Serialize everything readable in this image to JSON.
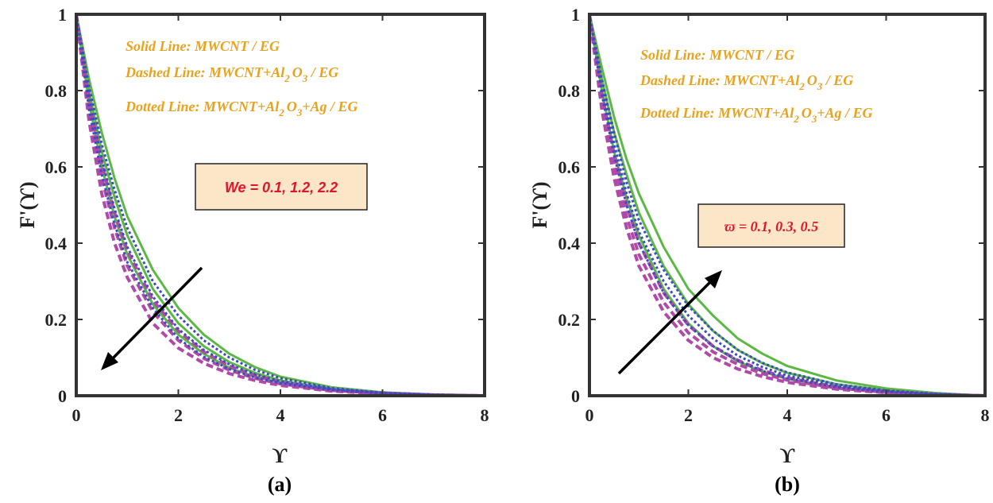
{
  "colors": {
    "solid": "#5cb845",
    "dashed": "#b04aa8",
    "dotted": "#3b4cc0",
    "legend": "#e8a21c",
    "param_text": "#e0142b",
    "param_box": "#fbe6c8",
    "axis": "#333333",
    "arrow": "#000000"
  },
  "legend": {
    "solid": "Solid Line: MWCNT / EG",
    "dashed_a": "Dashed Line: MWCNT+Al",
    "dashed_b": "O",
    "dashed_c": " / EG",
    "dotted_a": "Dotted Line: MWCNT+Al",
    "dotted_b": "O",
    "dotted_c": "+Ag / EG",
    "sub2": "2",
    "sub3": "3"
  },
  "panel_a": {
    "param": "We = 0.1, 1.2, 2.2",
    "label": "(a)",
    "ylabel": "F'(ϒ)",
    "xlabel": "ϒ"
  },
  "panel_b": {
    "param": "ϖ = 0.1, 0.3, 0.5",
    "label": "(b)",
    "ylabel": "F'(ϒ)",
    "xlabel": "ϒ"
  },
  "chart_data": [
    {
      "type": "line",
      "panel": "(a)",
      "xlabel": "ϒ",
      "ylabel": "F'(ϒ)",
      "xlim": [
        0,
        8
      ],
      "ylim": [
        0,
        1
      ],
      "xticks": [
        0,
        2,
        4,
        6,
        8
      ],
      "yticks": [
        0,
        0.2,
        0.4,
        0.6,
        0.8,
        1
      ],
      "ytick_labels": [
        "0",
        "0.2",
        "0.4",
        "0.6",
        "0.8",
        "1"
      ],
      "parameter": "We = 0.1, 1.2, 2.2",
      "trend": "decreasing",
      "x": [
        0,
        0.25,
        0.5,
        0.75,
        1,
        1.5,
        2,
        2.5,
        3,
        3.5,
        4,
        5,
        6,
        7,
        8
      ],
      "series": [
        {
          "name": "MWCNT / EG, We = 0.1",
          "style": "solid",
          "values": [
            1,
            0.83,
            0.69,
            0.57,
            0.47,
            0.33,
            0.23,
            0.16,
            0.11,
            0.075,
            0.05,
            0.022,
            0.009,
            0.003,
            0
          ]
        },
        {
          "name": "MWCNT / EG, We = 1.2",
          "style": "solid",
          "values": [
            1,
            0.8,
            0.64,
            0.52,
            0.42,
            0.28,
            0.19,
            0.13,
            0.088,
            0.06,
            0.04,
            0.017,
            0.007,
            0.002,
            0
          ]
        },
        {
          "name": "MWCNT / EG, We = 2.2",
          "style": "solid",
          "values": [
            1,
            0.77,
            0.6,
            0.47,
            0.37,
            0.24,
            0.16,
            0.11,
            0.073,
            0.05,
            0.034,
            0.015,
            0.006,
            0.002,
            0
          ]
        },
        {
          "name": "MWCNT+Al2O3 / EG, We = 0.1",
          "style": "dashed",
          "values": [
            1,
            0.78,
            0.61,
            0.48,
            0.38,
            0.25,
            0.17,
            0.115,
            0.078,
            0.053,
            0.036,
            0.016,
            0.007,
            0.002,
            0
          ]
        },
        {
          "name": "MWCNT+Al2O3 / EG, We = 1.2",
          "style": "dashed",
          "values": [
            1,
            0.75,
            0.57,
            0.44,
            0.34,
            0.22,
            0.145,
            0.098,
            0.067,
            0.046,
            0.031,
            0.014,
            0.006,
            0.002,
            0
          ]
        },
        {
          "name": "MWCNT+Al2O3 / EG, We = 2.2",
          "style": "dashed",
          "values": [
            1,
            0.72,
            0.53,
            0.4,
            0.31,
            0.19,
            0.125,
            0.085,
            0.058,
            0.04,
            0.027,
            0.012,
            0.005,
            0.002,
            0
          ]
        },
        {
          "name": "MWCNT+Al2O3+Ag / EG, We = 0.1",
          "style": "dotted",
          "values": [
            1,
            0.81,
            0.66,
            0.54,
            0.44,
            0.3,
            0.21,
            0.145,
            0.1,
            0.068,
            0.046,
            0.02,
            0.008,
            0.003,
            0
          ]
        },
        {
          "name": "MWCNT+Al2O3+Ag / EG, We = 1.2",
          "style": "dotted",
          "values": [
            1,
            0.78,
            0.62,
            0.49,
            0.39,
            0.26,
            0.175,
            0.12,
            0.082,
            0.056,
            0.038,
            0.017,
            0.007,
            0.002,
            0
          ]
        },
        {
          "name": "MWCNT+Al2O3+Ag / EG, We = 2.2",
          "style": "dotted",
          "values": [
            1,
            0.75,
            0.58,
            0.45,
            0.35,
            0.23,
            0.15,
            0.102,
            0.07,
            0.048,
            0.033,
            0.015,
            0.006,
            0.002,
            0
          ]
        }
      ]
    },
    {
      "type": "line",
      "panel": "(b)",
      "xlabel": "ϒ",
      "ylabel": "F'(ϒ)",
      "xlim": [
        0,
        8
      ],
      "ylim": [
        0,
        1
      ],
      "xticks": [
        0,
        2,
        4,
        6,
        8
      ],
      "yticks": [
        0,
        0.2,
        0.4,
        0.6,
        0.8,
        1
      ],
      "ytick_labels": [
        "0",
        "0.2",
        "0.4",
        "0.6",
        "0.8",
        "1"
      ],
      "parameter": "ϖ = 0.1, 0.3, 0.5",
      "trend": "increasing",
      "x": [
        0,
        0.25,
        0.5,
        0.75,
        1,
        1.5,
        2,
        2.5,
        3,
        3.5,
        4,
        5,
        6,
        7,
        8
      ],
      "series": [
        {
          "name": "MWCNT / EG, ϖ = 0.1",
          "style": "solid",
          "values": [
            1,
            0.8,
            0.64,
            0.52,
            0.42,
            0.28,
            0.19,
            0.13,
            0.09,
            0.063,
            0.044,
            0.021,
            0.009,
            0.003,
            0
          ]
        },
        {
          "name": "MWCNT / EG, ϖ = 0.3",
          "style": "solid",
          "values": [
            1,
            0.83,
            0.69,
            0.58,
            0.48,
            0.34,
            0.24,
            0.17,
            0.12,
            0.085,
            0.06,
            0.03,
            0.014,
            0.005,
            0
          ]
        },
        {
          "name": "MWCNT / EG, ϖ = 0.5",
          "style": "solid",
          "values": [
            1,
            0.86,
            0.73,
            0.62,
            0.53,
            0.39,
            0.28,
            0.21,
            0.15,
            0.11,
            0.078,
            0.04,
            0.019,
            0.007,
            0
          ]
        },
        {
          "name": "MWCNT+Al2O3 / EG, ϖ = 0.1",
          "style": "dashed",
          "values": [
            1,
            0.75,
            0.57,
            0.44,
            0.34,
            0.22,
            0.145,
            0.1,
            0.07,
            0.05,
            0.035,
            0.017,
            0.008,
            0.003,
            0
          ]
        },
        {
          "name": "MWCNT+Al2O3 / EG, ϖ = 0.3",
          "style": "dashed",
          "values": [
            1,
            0.77,
            0.6,
            0.47,
            0.37,
            0.245,
            0.165,
            0.115,
            0.082,
            0.058,
            0.041,
            0.02,
            0.009,
            0.003,
            0
          ]
        },
        {
          "name": "MWCNT+Al2O3 / EG, ϖ = 0.5",
          "style": "dashed",
          "values": [
            1,
            0.79,
            0.63,
            0.5,
            0.4,
            0.27,
            0.185,
            0.13,
            0.093,
            0.066,
            0.047,
            0.023,
            0.011,
            0.004,
            0
          ]
        },
        {
          "name": "MWCNT+Al2O3+Ag / EG, ϖ = 0.1",
          "style": "dotted",
          "values": [
            1,
            0.79,
            0.63,
            0.5,
            0.4,
            0.27,
            0.185,
            0.13,
            0.092,
            0.065,
            0.046,
            0.022,
            0.01,
            0.004,
            0
          ]
        },
        {
          "name": "MWCNT+Al2O3+Ag / EG, ϖ = 0.3",
          "style": "dotted",
          "values": [
            1,
            0.81,
            0.66,
            0.53,
            0.43,
            0.3,
            0.21,
            0.15,
            0.105,
            0.075,
            0.053,
            0.026,
            0.012,
            0.004,
            0
          ]
        },
        {
          "name": "MWCNT+Al2O3+Ag / EG, ϖ = 0.5",
          "style": "dotted",
          "values": [
            1,
            0.83,
            0.69,
            0.56,
            0.46,
            0.33,
            0.235,
            0.17,
            0.12,
            0.086,
            0.061,
            0.03,
            0.014,
            0.005,
            0
          ]
        }
      ]
    }
  ]
}
